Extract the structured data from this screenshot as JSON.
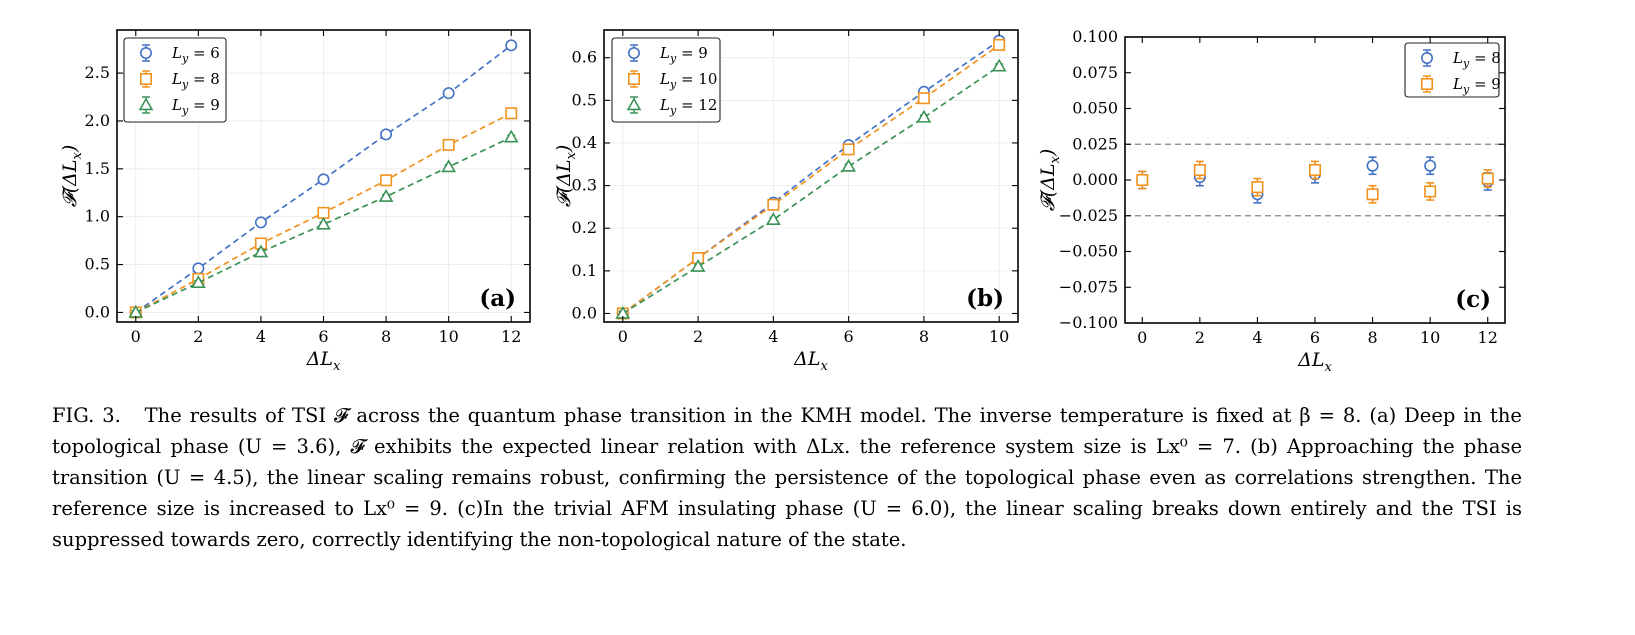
{
  "chart_data": [
    {
      "type": "line",
      "panel_tag": "(a)",
      "xlabel": "ΔLx",
      "ylabel": "F(ΔLx)",
      "xlim": [
        -0.6,
        12.6
      ],
      "ylim": [
        -0.1,
        2.95
      ],
      "xticks": [
        0,
        2,
        4,
        6,
        8,
        10,
        12
      ],
      "yticks": [
        0.0,
        0.5,
        1.0,
        1.5,
        2.0,
        2.5
      ],
      "ytick_labels": [
        "0.0",
        "0.5",
        "1.0",
        "1.5",
        "2.0",
        "2.5"
      ],
      "grid": true,
      "legend_position": "top-left",
      "series": [
        {
          "name": "Ly = 6",
          "marker": "circle",
          "color": "#4472c4",
          "x": [
            0,
            2,
            4,
            6,
            8,
            10,
            12
          ],
          "values": [
            0.0,
            0.46,
            0.94,
            1.39,
            1.86,
            2.29,
            2.79
          ],
          "err": [
            0.02,
            0.02,
            0.02,
            0.02,
            0.02,
            0.02,
            0.02
          ]
        },
        {
          "name": "Ly = 8",
          "marker": "square",
          "color": "#f0921e",
          "x": [
            0,
            2,
            4,
            6,
            8,
            10,
            12
          ],
          "values": [
            0.0,
            0.35,
            0.72,
            1.04,
            1.38,
            1.75,
            2.08
          ],
          "err": [
            0.02,
            0.02,
            0.02,
            0.02,
            0.02,
            0.02,
            0.02
          ]
        },
        {
          "name": "Ly = 9",
          "marker": "triangle",
          "color": "#3a9257",
          "x": [
            0,
            2,
            4,
            6,
            8,
            10,
            12
          ],
          "values": [
            0.0,
            0.31,
            0.63,
            0.92,
            1.21,
            1.52,
            1.83
          ],
          "err": [
            0.02,
            0.02,
            0.02,
            0.02,
            0.02,
            0.02,
            0.02
          ]
        }
      ]
    },
    {
      "type": "line",
      "panel_tag": "(b)",
      "xlabel": "ΔLx",
      "ylabel": "F(ΔLx)",
      "xlim": [
        -0.5,
        10.5
      ],
      "ylim": [
        -0.02,
        0.665
      ],
      "xticks": [
        0,
        2,
        4,
        6,
        8,
        10
      ],
      "yticks": [
        0.0,
        0.1,
        0.2,
        0.3,
        0.4,
        0.5,
        0.6
      ],
      "ytick_labels": [
        "0.0",
        "0.1",
        "0.2",
        "0.3",
        "0.4",
        "0.5",
        "0.6"
      ],
      "grid": true,
      "legend_position": "top-left",
      "series": [
        {
          "name": "Ly = 9",
          "marker": "circle",
          "color": "#4472c4",
          "x": [
            0,
            2,
            4,
            6,
            8,
            10
          ],
          "values": [
            0.0,
            0.13,
            0.26,
            0.395,
            0.52,
            0.64
          ],
          "err": [
            0.005,
            0.005,
            0.005,
            0.005,
            0.005,
            0.005
          ]
        },
        {
          "name": "Ly = 10",
          "marker": "square",
          "color": "#f0921e",
          "x": [
            0,
            2,
            4,
            6,
            8,
            10
          ],
          "values": [
            0.0,
            0.13,
            0.255,
            0.385,
            0.505,
            0.63
          ],
          "err": [
            0.005,
            0.005,
            0.005,
            0.005,
            0.005,
            0.005
          ]
        },
        {
          "name": "Ly = 12",
          "marker": "triangle",
          "color": "#3a9257",
          "x": [
            0,
            2,
            4,
            6,
            8,
            10
          ],
          "values": [
            0.0,
            0.11,
            0.22,
            0.345,
            0.46,
            0.58
          ],
          "err": [
            0.005,
            0.005,
            0.005,
            0.005,
            0.005,
            0.005
          ]
        }
      ]
    },
    {
      "type": "scatter",
      "panel_tag": "(c)",
      "xlabel": "ΔLx",
      "ylabel": "F(ΔLx)",
      "xlim": [
        -0.6,
        12.6
      ],
      "ylim": [
        -0.1,
        0.1
      ],
      "xticks": [
        0,
        2,
        4,
        6,
        8,
        10,
        12
      ],
      "yticks": [
        -0.1,
        -0.075,
        -0.05,
        -0.025,
        0.0,
        0.025,
        0.05,
        0.075,
        0.1
      ],
      "ytick_labels": [
        "−0.100",
        "−0.075",
        "−0.050",
        "−0.025",
        "0.000",
        "0.025",
        "0.050",
        "0.075",
        "0.100"
      ],
      "reference_lines": [
        0.025,
        -0.025
      ],
      "grid": false,
      "legend_position": "top-right",
      "series": [
        {
          "name": "Ly = 8",
          "marker": "circle",
          "color": "#4472c4",
          "x": [
            0,
            2,
            4,
            6,
            8,
            10,
            12
          ],
          "values": [
            0.0,
            0.002,
            -0.01,
            0.004,
            0.01,
            0.01,
            -0.001
          ],
          "err": [
            0.006,
            0.006,
            0.006,
            0.006,
            0.006,
            0.006,
            0.006
          ]
        },
        {
          "name": "Ly = 9",
          "marker": "square",
          "color": "#f0921e",
          "x": [
            0,
            2,
            4,
            6,
            8,
            10,
            12
          ],
          "values": [
            0.0,
            0.007,
            -0.005,
            0.007,
            -0.01,
            -0.008,
            0.001
          ],
          "err": [
            0.006,
            0.006,
            0.006,
            0.006,
            0.006,
            0.006,
            0.006
          ]
        }
      ]
    }
  ],
  "caption": {
    "label": "FIG. 3.",
    "text": "The results of TSI 𝓕 across the quantum phase transition in the KMH model. The inverse temperature is fixed at β = 8. (a) Deep in the topological phase (U = 3.6), 𝓕 exhibits the expected linear relation with ΔLx. the reference system size is Lx⁰ = 7. (b) Approaching the phase transition (U = 4.5), the linear scaling remains robust, confirming the persistence of the topological phase even as correlations strengthen. The reference size is increased to Lx⁰ = 9. (c)In the trivial AFM insulating phase (U = 6.0), the linear scaling breaks down entirely and the TSI is suppressed towards zero, correctly identifying the non-topological nature of the state."
  }
}
